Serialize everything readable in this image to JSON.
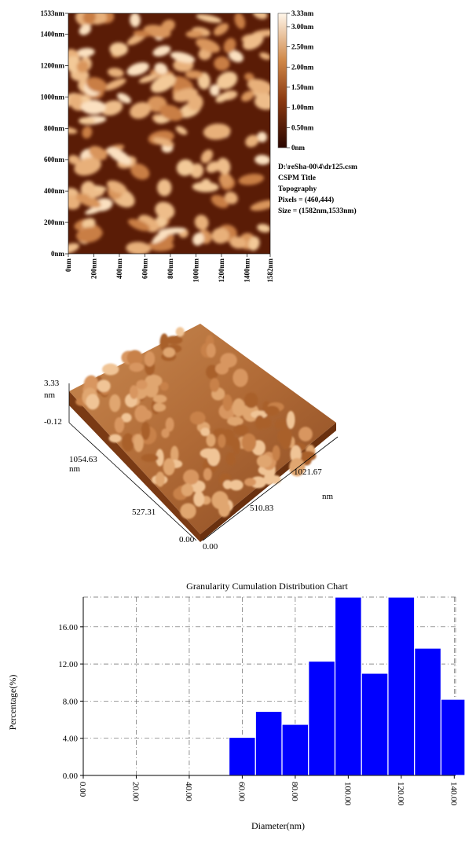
{
  "afm_2d": {
    "y_ticks": [
      "1533nm",
      "1400nm",
      "1200nm",
      "1000nm",
      "800nm",
      "600nm",
      "400nm",
      "200nm",
      "0nm"
    ],
    "y_values": [
      1533,
      1400,
      1200,
      1000,
      800,
      600,
      400,
      200,
      0
    ],
    "x_ticks": [
      "0nm",
      "200nm",
      "400nm",
      "600nm",
      "800nm",
      "1000nm",
      "1200nm",
      "1400nm",
      "1582nm"
    ],
    "x_values": [
      0,
      200,
      400,
      600,
      800,
      1000,
      1200,
      1400,
      1582
    ],
    "x_range": [
      0,
      1582
    ],
    "y_range": [
      0,
      1533
    ],
    "colorbar": {
      "labels": [
        "3.33nm",
        "3.00nm",
        "2.50nm",
        "2.00nm",
        "1.50nm",
        "1.00nm",
        "0.50nm",
        "0nm"
      ],
      "values": [
        3.33,
        3.0,
        2.5,
        2.0,
        1.5,
        1.0,
        0.5,
        0
      ],
      "range": [
        0,
        3.33
      ],
      "color_low": "#3a0c02",
      "color_mid": "#c06a32",
      "color_high": "#fff4e6"
    },
    "info": {
      "file": "D:\\reSha-00\\4\\dr125.csm",
      "title": "CSPM Title",
      "mode": "Topography",
      "pixels": "Pixels = (460,444)",
      "size": "Size = (1582nm,1533nm)"
    }
  },
  "afm_3d": {
    "z_max": "3.33",
    "z_unit": "nm",
    "z_min": "-0.12",
    "left_axis_ticks": [
      "1054.63",
      "527.31",
      "0.00"
    ],
    "left_axis_unit": "nm",
    "right_axis_ticks": [
      "0.00",
      "510.83",
      "1021.67"
    ],
    "right_axis_unit": "nm"
  },
  "chart_data": {
    "type": "bar",
    "title": "Granularity Cumulation Distribution  Chart",
    "xlabel": "Diameter(nm)",
    "ylabel": "Percentage(%)",
    "x_ticks": [
      "0.00",
      "20.00",
      "40.00",
      "60.00",
      "80.00",
      "100.00",
      "120.00",
      "140.00"
    ],
    "x_tick_values": [
      0,
      20,
      40,
      60,
      80,
      100,
      120,
      140
    ],
    "y_ticks": [
      "0.00",
      "4.00",
      "8.00",
      "12.00",
      "16.00"
    ],
    "y_tick_values": [
      0,
      4,
      8,
      12,
      16
    ],
    "xlim": [
      0,
      140.5
    ],
    "ylim": [
      0,
      19.2
    ],
    "bin_width": 10,
    "bins": [
      {
        "x": 60,
        "value": 4.1
      },
      {
        "x": 70,
        "value": 6.9
      },
      {
        "x": 80,
        "value": 5.5
      },
      {
        "x": 90,
        "value": 12.3
      },
      {
        "x": 100,
        "value": 19.2
      },
      {
        "x": 110,
        "value": 11.0
      },
      {
        "x": 120,
        "value": 19.2
      },
      {
        "x": 130,
        "value": 13.7
      },
      {
        "x": 140,
        "value": 8.2
      }
    ],
    "grid": true,
    "bar_color": "#0000ff"
  }
}
